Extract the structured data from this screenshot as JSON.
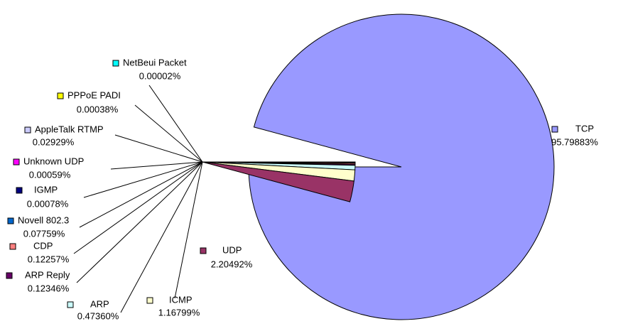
{
  "chart_data": {
    "type": "pie",
    "categories": [
      "TCP",
      "UDP",
      "ICMP",
      "ARP",
      "ARP Reply",
      "CDP",
      "Novell 802.3",
      "IGMP",
      "Unknown UDP",
      "AppleTalk RTMP",
      "PPPoE PADI",
      "NetBeui Packet"
    ],
    "values": [
      95.79883,
      2.20492,
      1.16799,
      0.4736,
      0.12346,
      0.12257,
      0.07759,
      0.00078,
      0.00059,
      0.02929,
      0.00038,
      2e-05
    ],
    "value_labels": [
      "95.79883%",
      "2.20492%",
      "1.16799%",
      "0.47360%",
      "0.12346%",
      "0.12257%",
      "0.07759%",
      "0.00078%",
      "0.00059%",
      "0.02929%",
      "0.00038%",
      "0.00002%"
    ],
    "colors": [
      "#9999ff",
      "#993366",
      "#ffffcc",
      "#ccffff",
      "#660066",
      "#ff8080",
      "#0066cc",
      "#000080",
      "#ff00ff",
      "#ccccff",
      "#ffff00",
      "#00ffff"
    ]
  }
}
